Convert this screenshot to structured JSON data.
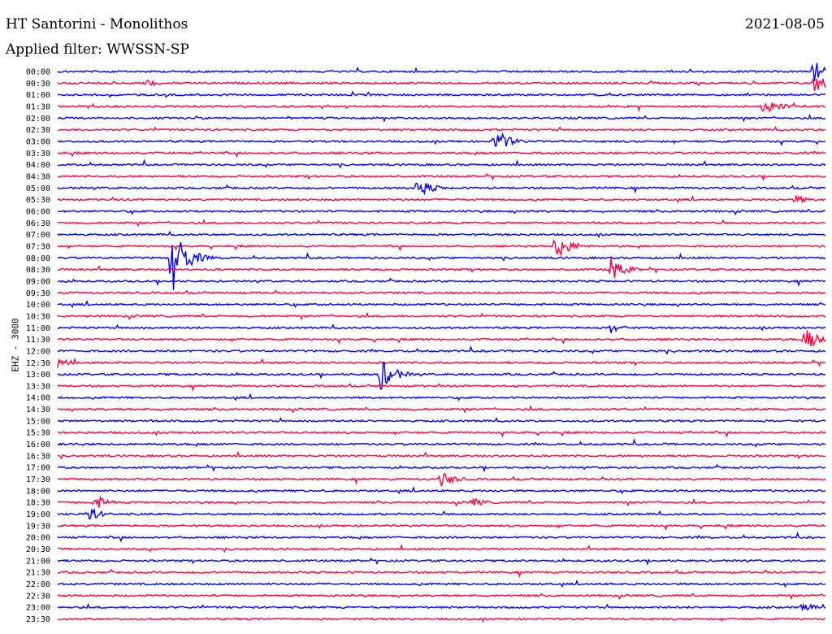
{
  "header": {
    "station": "HT Santorini - Monolithos",
    "date": "2021-08-05",
    "filter": "Applied filter: WWSSN-SP"
  },
  "chart_data": {
    "type": "line",
    "subtype": "helicorder",
    "ylabel": "EHZ - 3000",
    "tick_labels": [
      "00:00",
      "00:30",
      "01:00",
      "01:30",
      "02:00",
      "02:30",
      "03:00",
      "03:30",
      "04:00",
      "04:30",
      "05:00",
      "05:30",
      "06:00",
      "06:30",
      "07:00",
      "07:30",
      "08:00",
      "08:30",
      "09:00",
      "09:30",
      "10:00",
      "10:30",
      "11:00",
      "11:30",
      "12:00",
      "12:30",
      "13:00",
      "13:30",
      "14:00",
      "14:30",
      "15:00",
      "15:30",
      "16:00",
      "16:30",
      "17:00",
      "17:30",
      "18:00",
      "18:30",
      "19:00",
      "19:30",
      "20:00",
      "20:30",
      "21:00",
      "21:30",
      "22:00",
      "22:30",
      "23:00",
      "23:30"
    ],
    "colors": [
      "#0000ff",
      "#ff0040"
    ],
    "row_duration_minutes": 30,
    "events": [
      {
        "row": 0,
        "frac": 0.985,
        "amp": 14
      },
      {
        "row": 1,
        "frac": 0.115,
        "amp": 5
      },
      {
        "row": 1,
        "frac": 0.985,
        "amp": 14
      },
      {
        "row": 3,
        "frac": 0.92,
        "amp": 12
      },
      {
        "row": 6,
        "frac": 0.57,
        "amp": 16
      },
      {
        "row": 10,
        "frac": 0.47,
        "amp": 12
      },
      {
        "row": 11,
        "frac": 0.96,
        "amp": 6
      },
      {
        "row": 15,
        "frac": 0.65,
        "amp": 18
      },
      {
        "row": 16,
        "frac": 0.15,
        "amp": 42
      },
      {
        "row": 17,
        "frac": 0.72,
        "amp": 16
      },
      {
        "row": 22,
        "frac": 0.72,
        "amp": 7
      },
      {
        "row": 23,
        "frac": 0.975,
        "amp": 14
      },
      {
        "row": 25,
        "frac": 0.0,
        "amp": 8
      },
      {
        "row": 26,
        "frac": 0.42,
        "amp": 22
      },
      {
        "row": 35,
        "frac": 0.5,
        "amp": 10
      },
      {
        "row": 37,
        "frac": 0.05,
        "amp": 9
      },
      {
        "row": 37,
        "frac": 0.54,
        "amp": 6
      },
      {
        "row": 38,
        "frac": 0.04,
        "amp": 9
      },
      {
        "row": 46,
        "frac": 0.97,
        "amp": 6
      }
    ]
  }
}
